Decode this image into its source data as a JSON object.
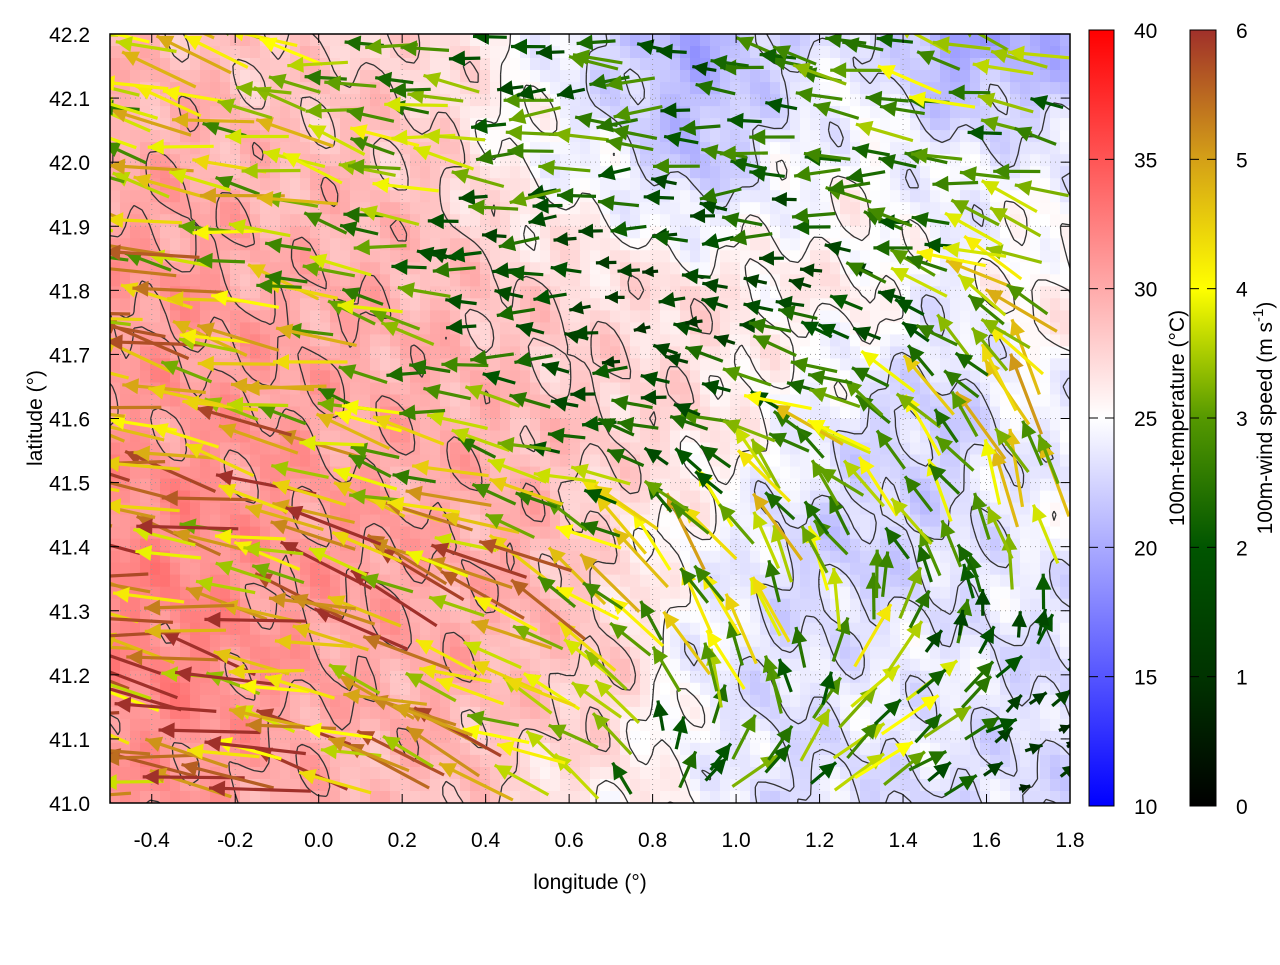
{
  "chart_data": {
    "type": "heatmap",
    "xlabel": "longitude (°)",
    "ylabel": "latitude (°)",
    "xlim": [
      -0.5,
      1.8
    ],
    "ylim": [
      41.0,
      42.2
    ],
    "xticks": [
      "-0.4",
      "-0.2",
      "0.0",
      "0.2",
      "0.4",
      "0.6",
      "0.8",
      "1.0",
      "1.2",
      "1.4",
      "1.6",
      "1.8"
    ],
    "yticks": [
      "41.0",
      "41.1",
      "41.2",
      "41.3",
      "41.4",
      "41.5",
      "41.6",
      "41.7",
      "41.8",
      "41.9",
      "42.0",
      "42.1",
      "42.2"
    ],
    "grid": true,
    "temperature": {
      "label": "100m-temperature (°C)",
      "range": [
        10,
        40
      ],
      "ticks": [
        "10",
        "15",
        "20",
        "25",
        "30",
        "35",
        "40"
      ],
      "colormap": {
        "low": "#0000ff",
        "mid": "#ffffff",
        "high": "#ff0000"
      },
      "grid_lon": [
        -0.5,
        -0.3,
        -0.1,
        0.1,
        0.3,
        0.5,
        0.7,
        0.9,
        1.1,
        1.3,
        1.5,
        1.7
      ],
      "grid_lat": [
        42.2,
        42.0,
        41.8,
        41.6,
        41.4,
        41.2,
        41.0
      ],
      "values": [
        [
          29,
          29,
          28,
          28,
          27,
          25,
          22,
          20,
          22,
          24,
          19,
          20
        ],
        [
          30,
          30,
          29,
          29,
          28,
          25,
          24,
          21,
          24,
          25,
          24,
          24
        ],
        [
          31,
          31,
          30,
          30,
          29,
          28,
          27,
          27,
          26,
          26,
          24,
          26
        ],
        [
          31,
          31,
          31,
          30,
          30,
          29,
          28,
          27,
          25,
          23,
          22,
          24
        ],
        [
          32,
          32,
          31,
          31,
          30,
          30,
          27,
          25,
          23,
          22,
          23,
          24
        ],
        [
          32,
          32,
          31,
          30,
          30,
          29,
          28,
          24,
          23,
          24,
          24,
          23
        ],
        [
          31,
          31,
          30,
          29,
          29,
          27,
          26,
          25,
          23,
          23,
          23,
          23
        ]
      ]
    },
    "wind": {
      "label_main": "100m-wind speed (m s",
      "label_sup": "-1",
      "label_end": ")",
      "range": [
        0,
        6
      ],
      "ticks": [
        "0",
        "1",
        "2",
        "3",
        "4",
        "5",
        "6"
      ],
      "colormap": [
        "#000000",
        "#003300",
        "#005500",
        "#559900",
        "#ffff00",
        "#d4a017",
        "#a0302a"
      ],
      "uv": [
        [
          [
            -4,
            1
          ],
          [
            -4,
            1
          ],
          [
            -4,
            1
          ],
          [
            -3.5,
            0.5
          ],
          [
            -3,
            0.5
          ],
          [
            -2.5,
            0
          ],
          [
            -2.5,
            0
          ],
          [
            -2.5,
            0
          ],
          [
            -2.5,
            0.5
          ],
          [
            -3,
            0.5
          ],
          [
            -4,
            1
          ],
          [
            -4,
            1.5
          ]
        ],
        [
          [
            -4.5,
            1
          ],
          [
            -4.5,
            1
          ],
          [
            -4.5,
            1
          ],
          [
            -4,
            1
          ],
          [
            -3.5,
            0.5
          ],
          [
            -3,
            0
          ],
          [
            -3,
            0
          ],
          [
            -2.5,
            0
          ],
          [
            -2.5,
            0
          ],
          [
            -3,
            0
          ],
          [
            -3,
            0.5
          ],
          [
            -3,
            0.5
          ]
        ],
        [
          [
            -5,
            1
          ],
          [
            -5,
            1
          ],
          [
            -4.5,
            1
          ],
          [
            -4,
            1
          ],
          [
            -3,
            0.5
          ],
          [
            -2,
            0
          ],
          [
            -1.5,
            0
          ],
          [
            -1.5,
            0
          ],
          [
            -2,
            0
          ],
          [
            -2,
            0.5
          ],
          [
            -3,
            1
          ],
          [
            -4,
            2
          ]
        ],
        [
          [
            -5,
            1
          ],
          [
            -5,
            1
          ],
          [
            -5,
            1
          ],
          [
            -4.5,
            1
          ],
          [
            -3.5,
            0.5
          ],
          [
            -3,
            0.3
          ],
          [
            -2,
            0
          ],
          [
            -2.5,
            0.5
          ],
          [
            -3,
            1
          ],
          [
            -4,
            2
          ],
          [
            -3,
            3
          ],
          [
            -2,
            4
          ]
        ],
        [
          [
            -5.5,
            1
          ],
          [
            -5.5,
            1
          ],
          [
            -5.5,
            1.2
          ],
          [
            -5.5,
            1.5
          ],
          [
            -5,
            2
          ],
          [
            -5,
            2
          ],
          [
            -4,
            2
          ],
          [
            -3,
            3.5
          ],
          [
            -2,
            4
          ],
          [
            -2.5,
            3.5
          ],
          [
            -2,
            3.5
          ],
          [
            -1.5,
            4
          ]
        ],
        [
          [
            -6,
            1
          ],
          [
            -6,
            1
          ],
          [
            -6,
            1.2
          ],
          [
            -5.5,
            1.5
          ],
          [
            -5.5,
            2
          ],
          [
            -5,
            2.5
          ],
          [
            -4,
            3
          ],
          [
            -1.5,
            4
          ],
          [
            -2,
            3.5
          ],
          [
            3,
            3
          ],
          [
            2,
            2
          ],
          [
            1,
            1
          ]
        ],
        [
          [
            -5.5,
            1
          ],
          [
            -5.5,
            1
          ],
          [
            -5.5,
            1
          ],
          [
            -5.5,
            1.5
          ],
          [
            -5,
            2
          ],
          [
            -4.5,
            2
          ],
          [
            -3,
            2
          ],
          [
            3,
            2
          ],
          [
            3.5,
            2
          ],
          [
            3,
            1.5
          ],
          [
            2.5,
            1
          ],
          [
            1,
            0.3
          ]
        ]
      ]
    }
  }
}
